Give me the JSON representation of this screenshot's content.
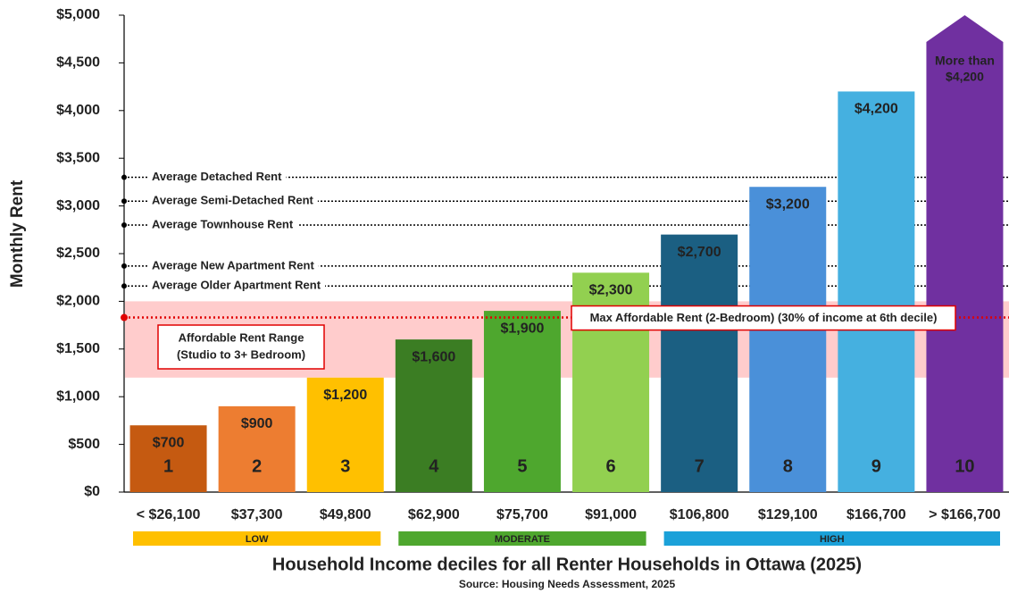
{
  "chart_data": {
    "type": "bar",
    "y_label": "Monthly Rent",
    "title": "Household Income deciles for all Renter Households in Ottawa (2025)",
    "source": "Source: Housing Needs Assessment, 2025",
    "categories": [
      "< $26,100",
      "$37,300",
      "$49,800",
      "$62,900",
      "$75,700",
      "$91,000",
      "$106,800",
      "$129,100",
      "$166,700",
      "> $166,700"
    ],
    "values": [
      700,
      900,
      1200,
      1600,
      1900,
      2300,
      2700,
      3200,
      4200,
      5000
    ],
    "value_labels": [
      "$700",
      "$900",
      "$1,200",
      "$1,600",
      "$1,900",
      "$2,300",
      "$2,700",
      "$3,200",
      "$4,200",
      null
    ],
    "top_bar_note": [
      "More than",
      "$4,200"
    ],
    "bar_numbers": [
      "1",
      "2",
      "3",
      "4",
      "5",
      "6",
      "7",
      "8",
      "9",
      "10"
    ],
    "colors": [
      "#c55a11",
      "#ed7d31",
      "#ffc000",
      "#3b7d23",
      "#4ea72e",
      "#92d050",
      "#1b5f82",
      "#4a90d9",
      "#45b0e0",
      "#7030a0"
    ],
    "groups": [
      {
        "name": "LOW",
        "color": "#ffc000",
        "categories": [
          0,
          2
        ]
      },
      {
        "name": "MODERATE",
        "color": "#4ea72e",
        "categories": [
          3,
          5
        ]
      },
      {
        "name": "HIGH",
        "color": "#1ba1d9",
        "categories": [
          6,
          9
        ]
      }
    ],
    "reference_lines": [
      {
        "label": "Average Detached Rent",
        "value": 3300
      },
      {
        "label": "Average Semi-Detached Rent",
        "value": 3050
      },
      {
        "label": "Average Townhouse Rent",
        "value": 2800
      },
      {
        "label": "Average New Apartment Rent",
        "value": 2370
      },
      {
        "label": "Average Older Apartment Rent",
        "value": 2160
      }
    ],
    "max_affordable": {
      "label": "Max Affordable Rent (2-Bedroom) (30% of income at 6th decile)",
      "value": 1830,
      "color": "#e00000"
    },
    "affordable_range": {
      "label": [
        "Affordable Rent Range",
        "(Studio to 3+ Bedroom)"
      ],
      "range": [
        1200,
        2000
      ],
      "color": "#ffcccc"
    },
    "ylim": [
      0,
      5000
    ],
    "yticks": [
      {
        "value": 0,
        "label": "$0"
      },
      {
        "value": 500,
        "label": "$500"
      },
      {
        "value": 1000,
        "label": "$1,000"
      },
      {
        "value": 1500,
        "label": "$1,500"
      },
      {
        "value": 2000,
        "label": "$2,000"
      },
      {
        "value": 2500,
        "label": "$2,500"
      },
      {
        "value": 3000,
        "label": "$3,000"
      },
      {
        "value": 3500,
        "label": "$3,500"
      },
      {
        "value": 4000,
        "label": "$4,000"
      },
      {
        "value": 4500,
        "label": "$4,500"
      },
      {
        "value": 5000,
        "label": "$5,000"
      }
    ]
  }
}
